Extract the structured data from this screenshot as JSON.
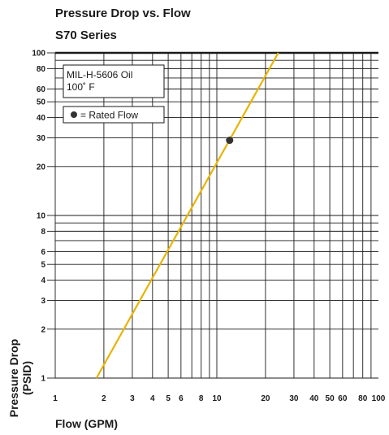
{
  "title_line1": "Pressure Drop vs. Flow",
  "title_line2": "S70 Series",
  "chart_data": {
    "type": "line",
    "scale": "log-log",
    "grid": true,
    "xlabel": "Flow (GPM)",
    "ylabel": "Pressure Drop (PSID)",
    "xlim": [
      1,
      100
    ],
    "ylim": [
      1,
      100
    ],
    "x_ticks": [
      1,
      2,
      3,
      4,
      5,
      6,
      8,
      10,
      20,
      30,
      40,
      50,
      60,
      80,
      100
    ],
    "y_ticks": [
      1,
      2,
      3,
      4,
      5,
      6,
      8,
      10,
      20,
      30,
      40,
      50,
      60,
      80,
      100
    ],
    "series": [
      {
        "x": [
          1.8,
          24
        ],
        "y": [
          1,
          100
        ],
        "color": "#e8b400"
      }
    ],
    "rated_flow_point": {
      "x": 12,
      "y": 29
    },
    "legend": {
      "fluid_line1": "MIL-H-5606 Oil",
      "fluid_line2": "100˚ F",
      "rated_flow_label": "= Rated Flow",
      "placement": "top-left"
    }
  }
}
